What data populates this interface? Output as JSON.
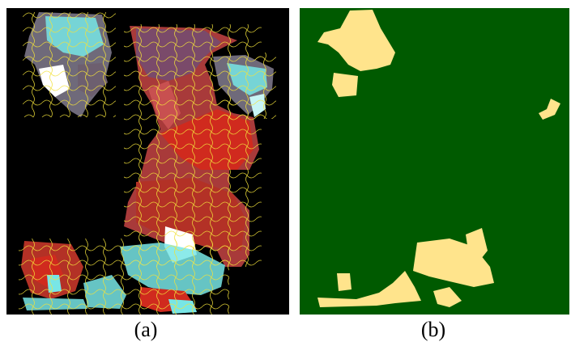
{
  "panels": [
    {
      "caption": "(a)"
    },
    {
      "caption": "(b)"
    }
  ],
  "colors": {
    "background_a": "#000000",
    "map_green": "#005a00",
    "map_cream": "#ffe48c",
    "segment_outline": "#f2e23a",
    "red_region": "#c8261c",
    "purple_region": "#7a4a6a",
    "cyan_region": "#78e6e6",
    "white_region": "#ffffff"
  }
}
